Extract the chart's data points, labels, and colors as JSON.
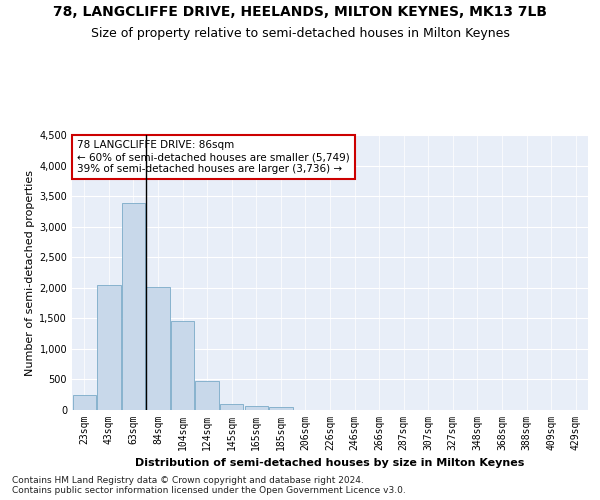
{
  "title1": "78, LANGCLIFFE DRIVE, HEELANDS, MILTON KEYNES, MK13 7LB",
  "title2": "Size of property relative to semi-detached houses in Milton Keynes",
  "xlabel": "Distribution of semi-detached houses by size in Milton Keynes",
  "ylabel": "Number of semi-detached properties",
  "footer1": "Contains HM Land Registry data © Crown copyright and database right 2024.",
  "footer2": "Contains public sector information licensed under the Open Government Licence v3.0.",
  "annotation_title": "78 LANGCLIFFE DRIVE: 86sqm",
  "annotation_line1": "← 60% of semi-detached houses are smaller (5,749)",
  "annotation_line2": "39% of semi-detached houses are larger (3,736) →",
  "bar_labels": [
    "23sqm",
    "43sqm",
    "63sqm",
    "84sqm",
    "104sqm",
    "124sqm",
    "145sqm",
    "165sqm",
    "185sqm",
    "206sqm",
    "226sqm",
    "246sqm",
    "266sqm",
    "287sqm",
    "307sqm",
    "327sqm",
    "348sqm",
    "368sqm",
    "388sqm",
    "409sqm",
    "429sqm"
  ],
  "bar_values": [
    250,
    2050,
    3380,
    2020,
    1460,
    475,
    100,
    60,
    55,
    0,
    0,
    0,
    0,
    0,
    0,
    0,
    0,
    0,
    0,
    0,
    0
  ],
  "bar_color": "#c8d8ea",
  "bar_edge_color": "#7aaac8",
  "ylim": [
    0,
    4500
  ],
  "yticks": [
    0,
    500,
    1000,
    1500,
    2000,
    2500,
    3000,
    3500,
    4000,
    4500
  ],
  "bg_color": "#ffffff",
  "plot_bg_color": "#e8eef8",
  "grid_color": "#ffffff",
  "annotation_box_color": "#cc0000",
  "vline_color": "#000000",
  "title1_fontsize": 10,
  "title2_fontsize": 9,
  "axis_fontsize": 8,
  "tick_fontsize": 7,
  "footer_fontsize": 6.5,
  "annot_fontsize": 7.5
}
